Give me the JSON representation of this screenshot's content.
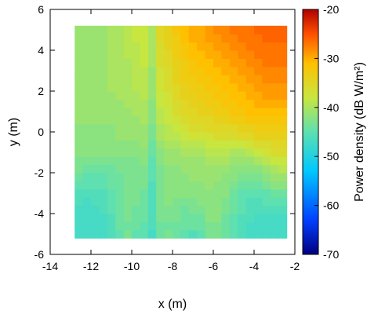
{
  "chart_data": {
    "type": "heatmap",
    "title": "",
    "xlabel": "x (m)",
    "ylabel": "y (m)",
    "xlim": [
      -14,
      -2
    ],
    "ylim": [
      -6,
      6
    ],
    "xticks": [
      -14,
      -12,
      -10,
      -8,
      -6,
      -4,
      -2
    ],
    "yticks": [
      -6,
      -4,
      -2,
      0,
      2,
      4,
      6
    ],
    "xtick_labels": [
      "-14",
      "-12",
      "-10",
      "-8",
      "-6",
      "-4",
      "-2"
    ],
    "ytick_labels": [
      "-6",
      "-4",
      "-2",
      "0",
      "2",
      "4",
      "6"
    ],
    "data_extent": {
      "x": [
        -12.8,
        -2.4
      ],
      "y": [
        -5.2,
        5.2
      ]
    },
    "colorbar": {
      "label": "Power density (dB W/m²)",
      "range": [
        -70,
        -20
      ],
      "ticks": [
        -70,
        -60,
        -50,
        -40,
        -30,
        -20
      ],
      "tick_labels": [
        "-70",
        "-60",
        "-50",
        "-40",
        "-30",
        "-20"
      ]
    },
    "grid": false,
    "colors": {
      "colormap_stops": [
        "#00007f",
        "#0040ff",
        "#00c8ff",
        "#5ee0b0",
        "#c8e640",
        "#ffc000",
        "#ff5000",
        "#b00000"
      ]
    },
    "grid_resolution": [
      26,
      26
    ],
    "values": [
      [
        -47,
        -47,
        -47,
        -47,
        -46,
        -45,
        -43,
        -45,
        -45,
        -47,
        -44,
        -43,
        -44,
        -45,
        -46,
        -45,
        -43,
        -43,
        -44,
        -45,
        -46,
        -47,
        -47,
        -47,
        -47,
        -47
      ],
      [
        -47,
        -47,
        -47,
        -47,
        -46,
        -44,
        -44,
        -44,
        -45,
        -46,
        -44,
        -44,
        -44,
        -44,
        -44,
        -44,
        -43,
        -43,
        -44,
        -45,
        -46,
        -47,
        -47,
        -47,
        -47,
        -47
      ],
      [
        -47,
        -47,
        -47,
        -47,
        -46,
        -44,
        -43,
        -44,
        -44,
        -46,
        -43,
        -43,
        -43,
        -44,
        -44,
        -44,
        -42,
        -42,
        -44,
        -45,
        -46,
        -46,
        -47,
        -47,
        -47,
        -47
      ],
      [
        -47,
        -47,
        -47,
        -46,
        -45,
        -44,
        -43,
        -44,
        -44,
        -46,
        -43,
        -43,
        -43,
        -44,
        -43,
        -43,
        -42,
        -42,
        -43,
        -44,
        -45,
        -46,
        -46,
        -46,
        -46,
        -46
      ],
      [
        -46,
        -47,
        -46,
        -46,
        -45,
        -44,
        -43,
        -43,
        -44,
        -46,
        -43,
        -42,
        -43,
        -43,
        -43,
        -42,
        -42,
        -42,
        -43,
        -44,
        -45,
        -46,
        -46,
        -45,
        -45,
        -45
      ],
      [
        -46,
        -46,
        -46,
        -46,
        -45,
        -44,
        -43,
        -43,
        -44,
        -46,
        -43,
        -42,
        -42,
        -42,
        -42,
        -42,
        -42,
        -42,
        -42,
        -44,
        -45,
        -45,
        -45,
        -45,
        -44,
        -44
      ],
      [
        -45,
        -45,
        -45,
        -45,
        -44,
        -44,
        -43,
        -43,
        -43,
        -46,
        -43,
        -42,
        -42,
        -42,
        -42,
        -42,
        -41,
        -42,
        -42,
        -43,
        -44,
        -44,
        -44,
        -43,
        -42,
        -42
      ],
      [
        -44,
        -45,
        -45,
        -45,
        -44,
        -44,
        -43,
        -43,
        -43,
        -45,
        -43,
        -42,
        -42,
        -42,
        -41,
        -41,
        -41,
        -41,
        -42,
        -42,
        -43,
        -43,
        -43,
        -42,
        -41,
        -41
      ],
      [
        -43,
        -44,
        -44,
        -44,
        -44,
        -43,
        -43,
        -43,
        -43,
        -45,
        -43,
        -42,
        -42,
        -41,
        -41,
        -41,
        -41,
        -41,
        -41,
        -42,
        -42,
        -42,
        -42,
        -41,
        -40,
        -39
      ],
      [
        -43,
        -43,
        -43,
        -43,
        -43,
        -43,
        -43,
        -43,
        -42,
        -45,
        -42,
        -41,
        -41,
        -41,
        -41,
        -41,
        -40,
        -40,
        -40,
        -41,
        -41,
        -41,
        -40,
        -39,
        -38,
        -38
      ],
      [
        -42,
        -42,
        -42,
        -42,
        -42,
        -42,
        -42,
        -42,
        -42,
        -44,
        -42,
        -41,
        -41,
        -40,
        -40,
        -40,
        -39,
        -39,
        -39,
        -40,
        -40,
        -39,
        -38,
        -37,
        -36,
        -36
      ],
      [
        -42,
        -42,
        -42,
        -42,
        -42,
        -42,
        -42,
        -42,
        -41,
        -44,
        -41,
        -40,
        -40,
        -39,
        -39,
        -39,
        -38,
        -38,
        -38,
        -38,
        -38,
        -37,
        -36,
        -36,
        -35,
        -35
      ],
      [
        -42,
        -42,
        -42,
        -42,
        -42,
        -41,
        -41,
        -41,
        -41,
        -43,
        -40,
        -39,
        -39,
        -38,
        -37,
        -37,
        -37,
        -36,
        -36,
        -36,
        -35,
        -35,
        -34,
        -34,
        -34,
        -34
      ],
      [
        -42,
        -42,
        -42,
        -42,
        -42,
        -41,
        -41,
        -41,
        -41,
        -43,
        -40,
        -39,
        -38,
        -37,
        -36,
        -36,
        -35,
        -35,
        -35,
        -35,
        -34,
        -34,
        -33,
        -33,
        -33,
        -33
      ],
      [
        -41,
        -41,
        -41,
        -41,
        -41,
        -41,
        -41,
        -41,
        -40,
        -42,
        -39,
        -38,
        -37,
        -36,
        -35,
        -35,
        -35,
        -34,
        -34,
        -33,
        -33,
        -32,
        -32,
        -32,
        -32,
        -32
      ],
      [
        -41,
        -41,
        -41,
        -41,
        -41,
        -41,
        -41,
        -40,
        -40,
        -42,
        -39,
        -38,
        -36,
        -35,
        -35,
        -34,
        -34,
        -33,
        -33,
        -32,
        -32,
        -31,
        -31,
        -31,
        -31,
        -31
      ],
      [
        -41,
        -41,
        -41,
        -41,
        -41,
        -41,
        -40,
        -40,
        -40,
        -42,
        -38,
        -37,
        -36,
        -35,
        -34,
        -34,
        -33,
        -33,
        -32,
        -32,
        -31,
        -31,
        -30,
        -30,
        -30,
        -30
      ],
      [
        -41,
        -41,
        -41,
        -41,
        -41,
        -40,
        -40,
        -40,
        -39,
        -41,
        -38,
        -37,
        -35,
        -34,
        -34,
        -33,
        -33,
        -32,
        -32,
        -31,
        -31,
        -30,
        -30,
        -29,
        -29,
        -29
      ],
      [
        -41,
        -41,
        -41,
        -41,
        -40,
        -40,
        -40,
        -39,
        -39,
        -41,
        -37,
        -36,
        -35,
        -34,
        -33,
        -33,
        -32,
        -32,
        -31,
        -31,
        -30,
        -30,
        -29,
        -29,
        -29,
        -29
      ],
      [
        -41,
        -41,
        -41,
        -41,
        -40,
        -40,
        -40,
        -39,
        -39,
        -41,
        -37,
        -36,
        -34,
        -33,
        -33,
        -32,
        -32,
        -31,
        -31,
        -30,
        -30,
        -29,
        -29,
        -28,
        -28,
        -28
      ],
      [
        -41,
        -41,
        -41,
        -41,
        -40,
        -40,
        -40,
        -39,
        -39,
        -41,
        -37,
        -36,
        -34,
        -33,
        -32,
        -32,
        -31,
        -31,
        -30,
        -30,
        -29,
        -29,
        -28,
        -28,
        -28,
        -28
      ],
      [
        -41,
        -41,
        -41,
        -41,
        -40,
        -40,
        -40,
        -39,
        -38,
        -40,
        -36,
        -35,
        -34,
        -33,
        -32,
        -31,
        -31,
        -30,
        -30,
        -29,
        -29,
        -28,
        -28,
        -27,
        -27,
        -27
      ],
      [
        -41,
        -41,
        -41,
        -41,
        -40,
        -40,
        -39,
        -39,
        -38,
        -40,
        -36,
        -35,
        -33,
        -32,
        -31,
        -31,
        -30,
        -30,
        -29,
        -29,
        -28,
        -28,
        -27,
        -27,
        -27,
        -27
      ],
      [
        -41,
        -41,
        -41,
        -41,
        -40,
        -40,
        -39,
        -39,
        -38,
        -40,
        -36,
        -34,
        -33,
        -32,
        -31,
        -30,
        -30,
        -29,
        -29,
        -28,
        -28,
        -27,
        -27,
        -27,
        -27,
        -27
      ],
      [
        -41,
        -41,
        -41,
        -41,
        -40,
        -40,
        -39,
        -38,
        -38,
        -40,
        -35,
        -34,
        -33,
        -31,
        -30,
        -30,
        -29,
        -29,
        -28,
        -28,
        -27,
        -27,
        -27,
        -26,
        -26,
        -26
      ],
      [
        -41,
        -41,
        -41,
        -41,
        -40,
        -40,
        -39,
        -38,
        -38,
        -40,
        -35,
        -34,
        -32,
        -31,
        -30,
        -30,
        -29,
        -28,
        -28,
        -27,
        -27,
        -27,
        -26,
        -26,
        -26,
        -26
      ]
    ]
  }
}
